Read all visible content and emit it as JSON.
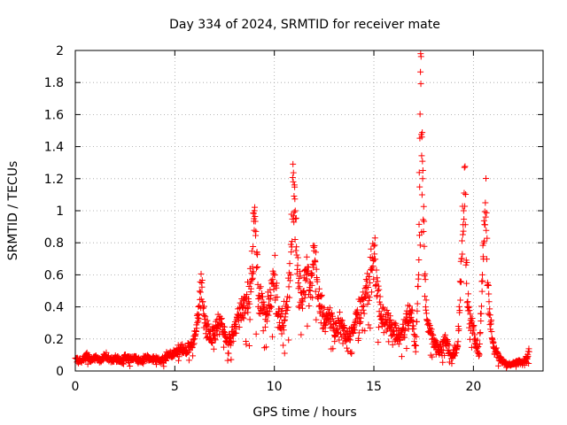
{
  "chart_data": {
    "type": "scatter",
    "title": "Day 334 of 2024, SRMTID for receiver mate",
    "xlabel": "GPS time / hours",
    "ylabel": "SRMTID / TECUs",
    "xlim": [
      0,
      23.5
    ],
    "ylim": [
      0,
      2
    ],
    "x_ticks": [
      0,
      5,
      10,
      15,
      20
    ],
    "x_tick_labels": [
      "0",
      "5",
      "10",
      "15",
      "20"
    ],
    "y_ticks": [
      0,
      0.2,
      0.4,
      0.6,
      0.8,
      1,
      1.2,
      1.4,
      1.6,
      1.8,
      2
    ],
    "y_tick_labels": [
      "0",
      "0.2",
      "0.4",
      "0.6",
      "0.8",
      "1",
      "1.2",
      "1.4",
      "1.6",
      "1.8",
      "2"
    ],
    "grid": true,
    "marker": "+",
    "series": [
      {
        "name": "SRMTID",
        "color": "#ff0000",
        "profile_note": "dense red plus markers; values estimated from the figure",
        "x": [
          0.0,
          0.3,
          0.5,
          0.8,
          1.0,
          1.3,
          1.5,
          1.8,
          2.0,
          2.3,
          2.5,
          2.8,
          3.0,
          3.3,
          3.5,
          3.8,
          4.0,
          4.3,
          4.5,
          4.8,
          5.0,
          5.2,
          5.5,
          5.8,
          6.0,
          6.2,
          6.35,
          6.5,
          6.8,
          7.0,
          7.3,
          7.6,
          7.9,
          8.2,
          8.4,
          8.7,
          8.9,
          9.0,
          9.2,
          9.4,
          9.6,
          9.8,
          10.0,
          10.2,
          10.4,
          10.6,
          10.8,
          10.95,
          11.05,
          11.2,
          11.4,
          11.6,
          11.8,
          12.0,
          12.2,
          12.4,
          12.6,
          12.8,
          13.0,
          13.3,
          13.6,
          13.9,
          14.2,
          14.5,
          14.8,
          15.0,
          15.2,
          15.4,
          15.6,
          15.8,
          16.0,
          16.3,
          16.6,
          16.9,
          17.1,
          17.25,
          17.35,
          17.45,
          17.6,
          17.8,
          18.0,
          18.3,
          18.6,
          18.9,
          19.2,
          19.4,
          19.55,
          19.7,
          19.9,
          20.1,
          20.3,
          20.45,
          20.6,
          20.8,
          21.0,
          21.3,
          21.6,
          21.9,
          22.2,
          22.5,
          22.8
        ],
        "y": [
          0.08,
          0.06,
          0.1,
          0.07,
          0.09,
          0.06,
          0.1,
          0.07,
          0.08,
          0.06,
          0.09,
          0.07,
          0.08,
          0.06,
          0.09,
          0.07,
          0.08,
          0.06,
          0.09,
          0.1,
          0.12,
          0.14,
          0.13,
          0.15,
          0.2,
          0.35,
          0.55,
          0.3,
          0.2,
          0.25,
          0.3,
          0.18,
          0.22,
          0.35,
          0.4,
          0.45,
          0.65,
          1.0,
          0.45,
          0.4,
          0.35,
          0.45,
          0.6,
          0.35,
          0.3,
          0.4,
          0.6,
          1.18,
          1.0,
          0.55,
          0.45,
          0.6,
          0.5,
          0.75,
          0.45,
          0.4,
          0.3,
          0.35,
          0.25,
          0.3,
          0.2,
          0.25,
          0.35,
          0.45,
          0.55,
          0.78,
          0.5,
          0.3,
          0.35,
          0.28,
          0.25,
          0.22,
          0.3,
          0.38,
          0.12,
          0.6,
          1.98,
          1.2,
          0.4,
          0.25,
          0.18,
          0.12,
          0.2,
          0.1,
          0.15,
          0.7,
          1.27,
          0.4,
          0.3,
          0.2,
          0.1,
          0.6,
          1.05,
          0.35,
          0.15,
          0.08,
          0.05,
          0.04,
          0.06,
          0.05,
          0.12
        ]
      }
    ]
  }
}
